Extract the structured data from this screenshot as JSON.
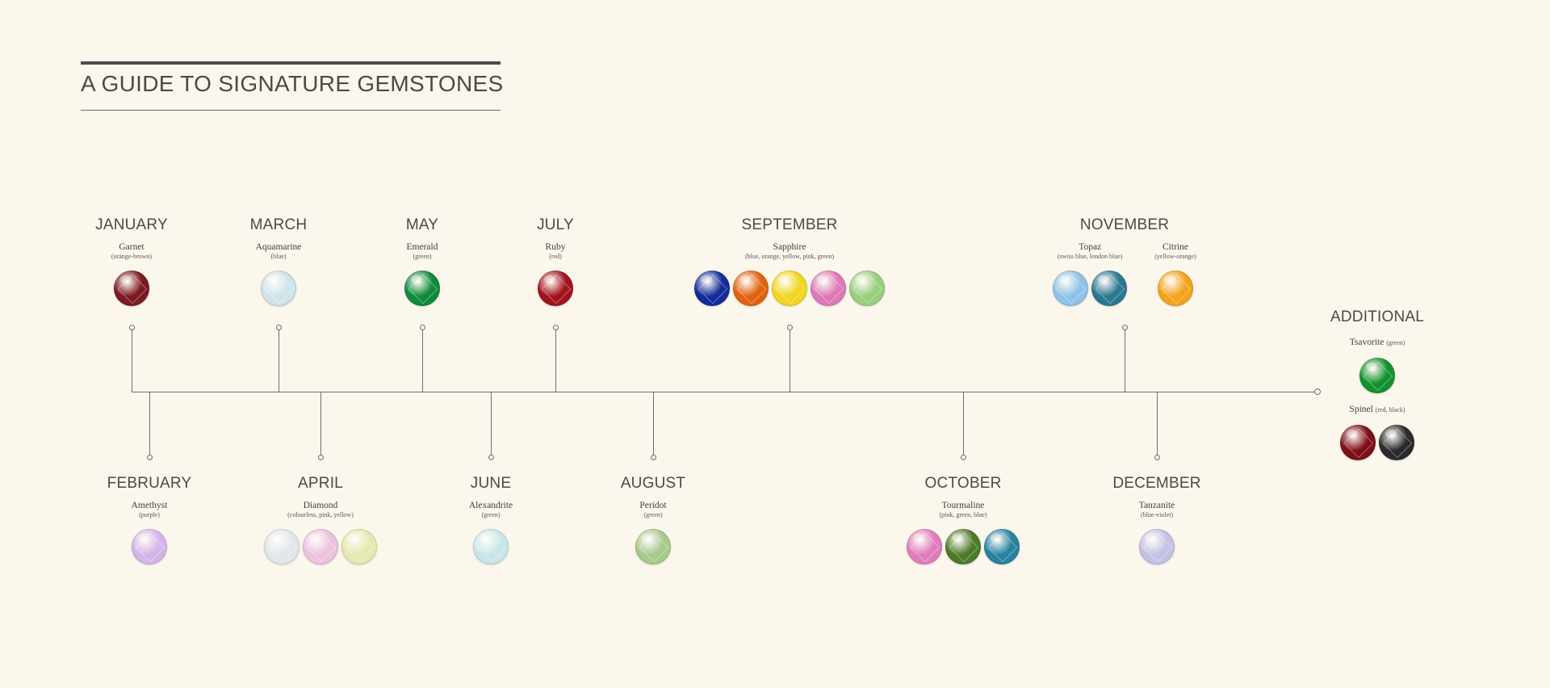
{
  "title": "A GUIDE TO SIGNATURE GEMSTONES",
  "top_months": [
    {
      "key": "january",
      "month": "JANUARY",
      "stones": [
        {
          "name": "Garnet",
          "note": "(orange-brown)",
          "gems": [
            "#7a1a22"
          ]
        }
      ]
    },
    {
      "key": "march",
      "month": "MARCH",
      "stones": [
        {
          "name": "Aquamarine",
          "note": "(blue)",
          "gems": [
            "#cfe3ea"
          ]
        }
      ]
    },
    {
      "key": "may",
      "month": "MAY",
      "stones": [
        {
          "name": "Emerald",
          "note": "(green)",
          "gems": [
            "#0f8a3c"
          ]
        }
      ]
    },
    {
      "key": "july",
      "month": "JULY",
      "stones": [
        {
          "name": "Ruby",
          "note": "(red)",
          "gems": [
            "#a3131e"
          ]
        }
      ]
    },
    {
      "key": "september",
      "month": "SEPTEMBER",
      "stones": [
        {
          "name": "Sapphire",
          "note": "(blue, orange, yellow, pink, green)",
          "gems": [
            "#142c9a",
            "#e0620e",
            "#f1d51e",
            "#dd79b6",
            "#98cf7d"
          ]
        }
      ]
    },
    {
      "key": "november",
      "month": "NOVEMBER",
      "stones": [
        {
          "name": "Topaz",
          "note": "(swiss blue, london blue)",
          "gems": [
            "#8ec2e6",
            "#2a7890"
          ]
        },
        {
          "name": "Citrine",
          "note": "(yellow-orange)",
          "gems": [
            "#f2a41b"
          ]
        }
      ]
    }
  ],
  "bottom_months": [
    {
      "key": "february",
      "month": "FEBRUARY",
      "stones": [
        {
          "name": "Amethyst",
          "note": "(purple)",
          "gems": [
            "#d4b4e8"
          ]
        }
      ]
    },
    {
      "key": "april",
      "month": "APRIL",
      "stones": [
        {
          "name": "Diamond",
          "note": "(colourless, pink, yellow)",
          "gems": [
            "#e2e6ea",
            "#ecc2de",
            "#e6e8b0"
          ]
        }
      ]
    },
    {
      "key": "june",
      "month": "JUNE",
      "stones": [
        {
          "name": "Alexandrite",
          "note": "(green)",
          "gems": [
            "#c8e6ea"
          ]
        }
      ]
    },
    {
      "key": "august",
      "month": "AUGUST",
      "stones": [
        {
          "name": "Peridot",
          "note": "(green)",
          "gems": [
            "#a8c98c"
          ]
        }
      ]
    },
    {
      "key": "october",
      "month": "OCTOBER",
      "stones": [
        {
          "name": "Tourmaline",
          "note": "(pink, green, blue)",
          "gems": [
            "#e07cbc",
            "#4d7a2a",
            "#2882a0"
          ]
        }
      ]
    },
    {
      "key": "december",
      "month": "DECEMBER",
      "stones": [
        {
          "name": "Tanzanite",
          "note": "(blue-violet)",
          "gems": [
            "#c3c2e6"
          ]
        }
      ]
    }
  ],
  "additional": {
    "heading": "ADDITIONAL",
    "stones": [
      {
        "name": "Tsavorite",
        "note": "(green)",
        "gems": [
          "#12922e"
        ]
      },
      {
        "name": "Spinel",
        "note": "(red, black)",
        "gems": [
          "#7e0f18",
          "#2a2a2c"
        ]
      }
    ]
  }
}
